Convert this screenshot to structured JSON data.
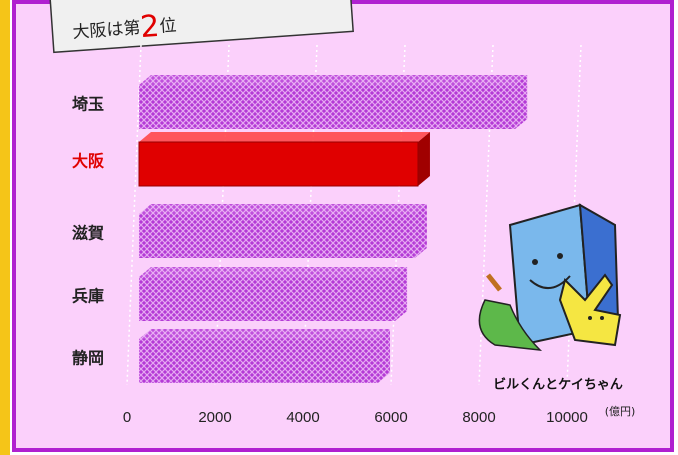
{
  "chart_data": {
    "type": "hbar3d",
    "title_parts": [
      "大阪は第",
      "2",
      "位"
    ],
    "unit": "(億円)",
    "caption": "ビルくんとケイちゃん",
    "categories": [
      "埼玉",
      "大阪",
      "滋賀",
      "兵庫",
      "静岡"
    ],
    "values": [
      8550,
      6340,
      6270,
      5820,
      5430
    ],
    "bar_colors": [
      "#c64fe0",
      "#e00000",
      "#c64fe0",
      "#c64fe0",
      "#c64fe0"
    ],
    "label_colors": [
      "#222222",
      "#e00000",
      "#222222",
      "#222222",
      "#222222"
    ],
    "xlim": [
      0,
      10000
    ],
    "xticks": [
      0,
      2000,
      4000,
      6000,
      8000,
      10000
    ],
    "grid": true
  }
}
